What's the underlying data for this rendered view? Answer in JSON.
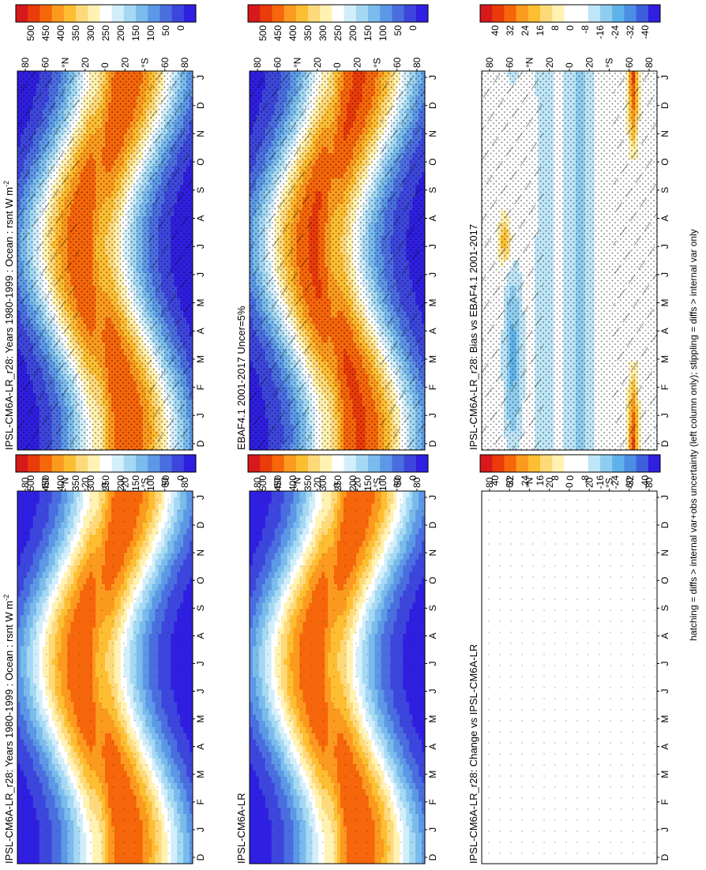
{
  "footnote": "hatching = diffs > internal var+obs uncertainty (left column only); stippling = diffs > internal var only",
  "colorbars": {
    "absolute": {
      "labels": [
        "500",
        "450",
        "400",
        "350",
        "300",
        "250",
        "200",
        "150",
        "100",
        "50",
        "0"
      ],
      "colors": [
        "#d7191c",
        "#ea3b0a",
        "#f6660a",
        "#fb9a1e",
        "#fdbe32",
        "#fed97a",
        "#fff2b2",
        "#ffffff",
        "#d2eefb",
        "#a4d8f3",
        "#7abbec",
        "#5c98e6",
        "#4a6ee0",
        "#3d46dc",
        "#2f1fe0"
      ]
    },
    "difference": {
      "labels": [
        "40",
        "32",
        "24",
        "16",
        "8",
        "0",
        "-8",
        "-16",
        "-24",
        "-32",
        "-40"
      ],
      "colors": [
        "#d7191c",
        "#ea3b0a",
        "#f6660a",
        "#fb9a1e",
        "#fdbe32",
        "#fed97a",
        "#fff2b2",
        "#ffffff",
        "#ffffff",
        "#bfe6f8",
        "#8fcdf0",
        "#5eb3ea",
        "#4b8ee4",
        "#3e5fdd",
        "#2f1fe0"
      ]
    }
  },
  "panels": [
    {
      "id": "p1",
      "title": "IPSL-CM6A-LR_r28: Years 1980-1999 : Ocean : rsnt W m",
      "superscript": "-2",
      "kind": "absolute",
      "hatching": true,
      "stippling": "heavy"
    },
    {
      "id": "p2",
      "title": "IPSL-CM6A-LR_r28: Years 1980-1999 : Ocean : rsnt W m",
      "superscript": "-2",
      "kind": "absolute",
      "hatching": false,
      "stippling": "sparse"
    },
    {
      "id": "p3",
      "title": "EBAF4.1 2001-2017 Uncer=5%",
      "superscript": "",
      "kind": "absolute",
      "hatching": true,
      "stippling": "heavy"
    },
    {
      "id": "p4",
      "title": "IPSL-CM6A-LR",
      "superscript": "",
      "kind": "absolute",
      "hatching": false,
      "stippling": "sparse"
    },
    {
      "id": "p5",
      "title": "IPSL-CM6A-LR_r28: Bias vs EBAF4.1 2001-2017",
      "superscript": "",
      "kind": "difference",
      "hatching": true,
      "stippling": "heavy"
    },
    {
      "id": "p6",
      "title": "IPSL-CM6A-LR_r28: Change vs IPSL-CM6A-LR",
      "superscript": "",
      "kind": "difference",
      "hatching": false,
      "stippling": "sparse"
    }
  ],
  "chart_data": [
    {
      "type": "heatmap",
      "title": "IPSL-CM6A-LR_r28: Years 1980-1999 : Ocean : rsnt W m-2",
      "x_ticks": [
        "D",
        "J",
        "F",
        "M",
        "A",
        "M",
        "J",
        "J",
        "A",
        "S",
        "O",
        "N",
        "D",
        "J"
      ],
      "y_ticks": [
        "80",
        "60",
        "°N",
        "20",
        "0",
        "20",
        "°S",
        "60",
        "80"
      ],
      "colorbar_levels": [
        500,
        450,
        400,
        350,
        300,
        250,
        200,
        150,
        100,
        50,
        0
      ],
      "description_of_field": "seasonal cycle of net shortwave flux over ocean; maxima ~400 near 20N in boreal summer and 20-30S in austral summer; minima <50 at high latitudes in winter"
    },
    {
      "type": "heatmap",
      "title": "IPSL-CM6A-LR_r28: Years 1980-1999 : Ocean : rsnt W m-2",
      "x_ticks": [
        "D",
        "J",
        "F",
        "M",
        "A",
        "M",
        "J",
        "J",
        "A",
        "S",
        "O",
        "N",
        "D",
        "J"
      ],
      "y_ticks": [
        "80",
        "60",
        "°N",
        "20",
        "0",
        "20",
        "°S",
        "60",
        "80"
      ],
      "colorbar_levels": [
        500,
        450,
        400,
        350,
        300,
        250,
        200,
        150,
        100,
        50,
        0
      ]
    },
    {
      "type": "heatmap",
      "title": "EBAF4.1 2001-2017 Uncer=5%",
      "x_ticks": [
        "D",
        "J",
        "F",
        "M",
        "A",
        "M",
        "J",
        "J",
        "A",
        "S",
        "O",
        "N",
        "D",
        "J"
      ],
      "y_ticks": [
        "80",
        "60",
        "°N",
        "20",
        "0",
        "20",
        "°S",
        "60",
        "80"
      ],
      "colorbar_levels": [
        500,
        450,
        400,
        350,
        300,
        250,
        200,
        150,
        100,
        50,
        0
      ]
    },
    {
      "type": "heatmap",
      "title": "IPSL-CM6A-LR",
      "x_ticks": [
        "D",
        "J",
        "F",
        "M",
        "A",
        "M",
        "J",
        "J",
        "A",
        "S",
        "O",
        "N",
        "D",
        "J"
      ],
      "y_ticks": [
        "80",
        "60",
        "°N",
        "20",
        "0",
        "20",
        "°S",
        "60",
        "80"
      ],
      "colorbar_levels": [
        500,
        450,
        400,
        350,
        300,
        250,
        200,
        150,
        100,
        50,
        0
      ]
    },
    {
      "type": "heatmap",
      "title": "IPSL-CM6A-LR_r28: Bias vs EBAF4.1 2001-2017",
      "x_ticks": [
        "D",
        "J",
        "F",
        "M",
        "A",
        "M",
        "J",
        "J",
        "A",
        "S",
        "O",
        "N",
        "D",
        "J"
      ],
      "y_ticks": [
        "80",
        "60",
        "°N",
        "20",
        "0",
        "20",
        "°S",
        "60",
        "80"
      ],
      "colorbar_levels": [
        40,
        32,
        24,
        16,
        8,
        0,
        -8,
        -16,
        -24,
        -32,
        -40
      ]
    },
    {
      "type": "heatmap",
      "title": "IPSL-CM6A-LR_r28: Change vs IPSL-CM6A-LR",
      "x_ticks": [
        "D",
        "J",
        "F",
        "M",
        "A",
        "M",
        "J",
        "J",
        "A",
        "S",
        "O",
        "N",
        "D",
        "J"
      ],
      "y_ticks": [
        "80",
        "60",
        "°N",
        "20",
        "0",
        "20",
        "°S",
        "60",
        "80"
      ],
      "colorbar_levels": [
        40,
        32,
        24,
        16,
        8,
        0,
        -8,
        -16,
        -24,
        -32,
        -40
      ]
    }
  ]
}
